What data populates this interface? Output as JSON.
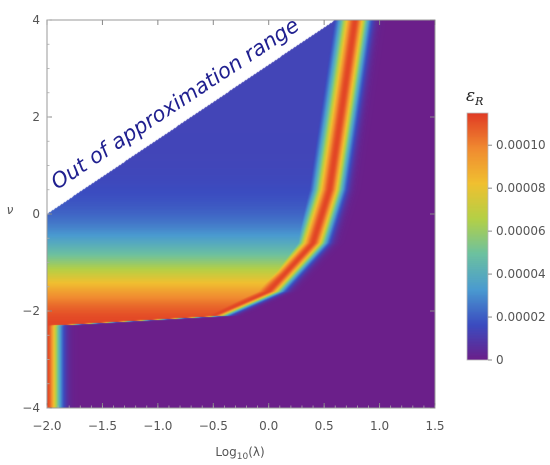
{
  "chart_data": {
    "type": "heatmap",
    "title": "",
    "xlabel": "Log",
    "xlabel_sub": "10",
    "xlabel_arg": "(λ)",
    "ylabel": "ν",
    "xlim": [
      -2.0,
      1.5
    ],
    "ylim": [
      -4,
      4
    ],
    "x_ticks": [
      -2.0,
      -1.5,
      -1.0,
      -0.5,
      0.0,
      0.5,
      1.0,
      1.5
    ],
    "x_tick_labels": [
      "−2.0",
      "−1.5",
      "−1.0",
      "−0.5",
      "0.0",
      "0.5",
      "1.0",
      "1.5"
    ],
    "y_ticks": [
      -4,
      -2,
      0,
      2,
      4
    ],
    "y_tick_labels": [
      "−4",
      "−2",
      "0",
      "2",
      "4"
    ],
    "excluded_region": {
      "label": "Out of approximation range",
      "boundary": [
        [
          -2.0,
          0.0
        ],
        [
          0.6,
          4.0
        ]
      ],
      "fill": "#ffffff"
    },
    "ridge": {
      "description_points": [
        [
          -2.0,
          -2.3
        ],
        [
          -0.5,
          -2.1
        ],
        [
          0.0,
          -1.6
        ],
        [
          0.4,
          -0.6
        ],
        [
          0.55,
          0.5
        ],
        [
          0.65,
          2.0
        ],
        [
          0.78,
          4.0
        ]
      ],
      "peak_value": 0.000115
    },
    "colorbar": {
      "title_main": "ε",
      "title_sub": "R",
      "min": 0,
      "max": 0.000115,
      "ticks": [
        0,
        2e-05,
        4e-05,
        6e-05,
        8e-05,
        0.0001
      ],
      "tick_labels": [
        "0",
        "0.00002",
        "0.00004",
        "0.00006",
        "0.00008",
        "0.00010"
      ]
    },
    "colors": {
      "stops": [
        "#6b1f8a",
        "#3b4cc0",
        "#4a9bd0",
        "#6cc1a0",
        "#b4d046",
        "#f0c030",
        "#f08a30",
        "#e03a24"
      ]
    },
    "grid": false,
    "legend": "colorbar-right"
  }
}
